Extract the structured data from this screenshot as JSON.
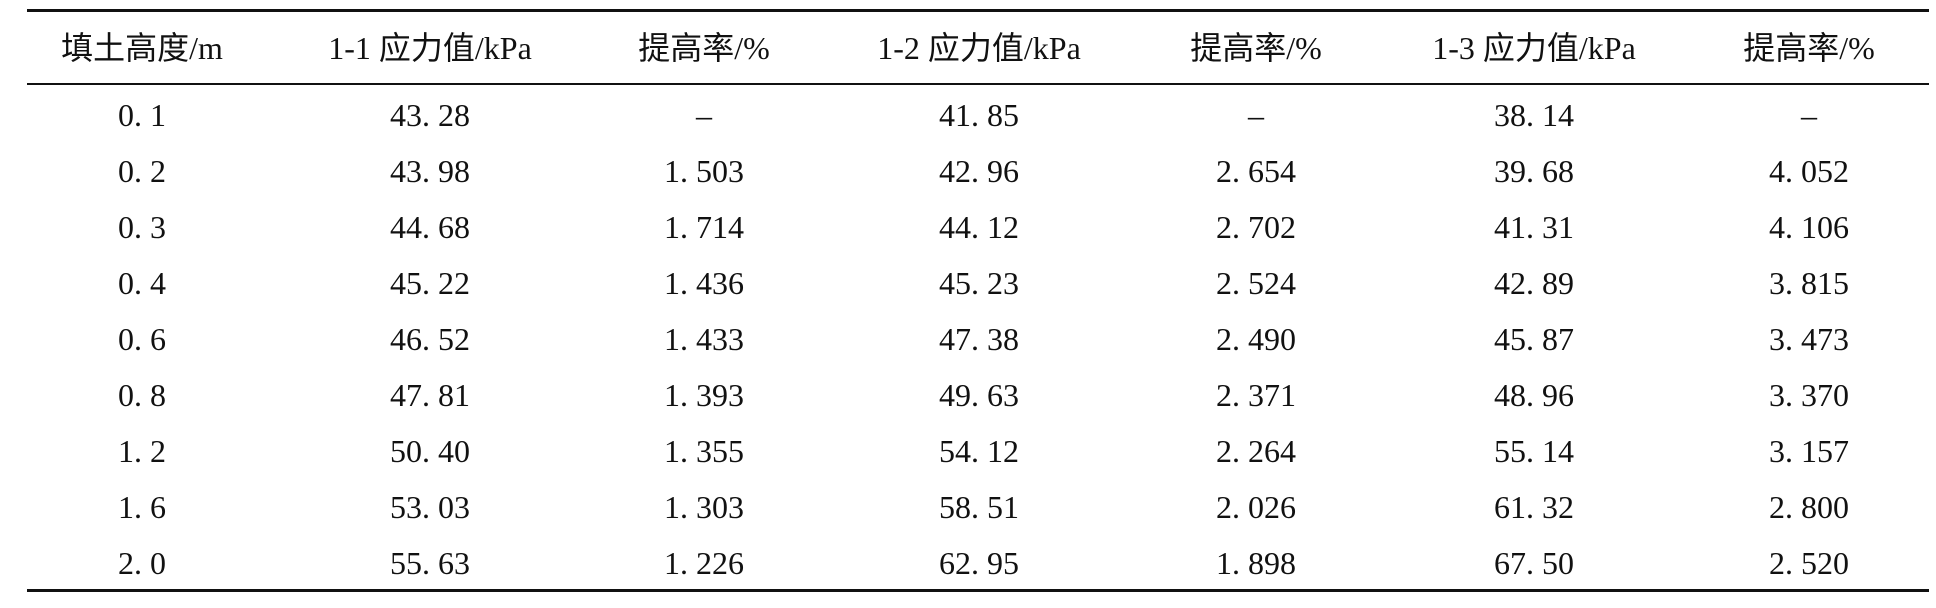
{
  "table": {
    "header": [
      "填土高度/m",
      "1-1 应力值/kPa",
      "提高率/%",
      "1-2 应力值/kPa",
      "提高率/%",
      "1-3 应力值/kPa",
      "提高率/%"
    ],
    "rows": [
      [
        "0. 1",
        "43. 28",
        "–",
        "41. 85",
        "–",
        "38. 14",
        "–"
      ],
      [
        "0. 2",
        "43. 98",
        "1. 503",
        "42. 96",
        "2. 654",
        "39. 68",
        "4. 052"
      ],
      [
        "0. 3",
        "44. 68",
        "1. 714",
        "44. 12",
        "2. 702",
        "41. 31",
        "4. 106"
      ],
      [
        "0. 4",
        "45. 22",
        "1. 436",
        "45. 23",
        "2. 524",
        "42. 89",
        "3. 815"
      ],
      [
        "0. 6",
        "46. 52",
        "1. 433",
        "47. 38",
        "2. 490",
        "45. 87",
        "3. 473"
      ],
      [
        "0. 8",
        "47. 81",
        "1. 393",
        "49. 63",
        "2. 371",
        "48. 96",
        "3. 370"
      ],
      [
        "1. 2",
        "50. 40",
        "1. 355",
        "54. 12",
        "2. 264",
        "55. 14",
        "3. 157"
      ],
      [
        "1. 6",
        "53. 03",
        "1. 303",
        "58. 51",
        "2. 026",
        "61. 32",
        "2. 800"
      ],
      [
        "2. 0",
        "55. 63",
        "1. 226",
        "62. 95",
        "1. 898",
        "67. 50",
        "2. 520"
      ]
    ]
  }
}
